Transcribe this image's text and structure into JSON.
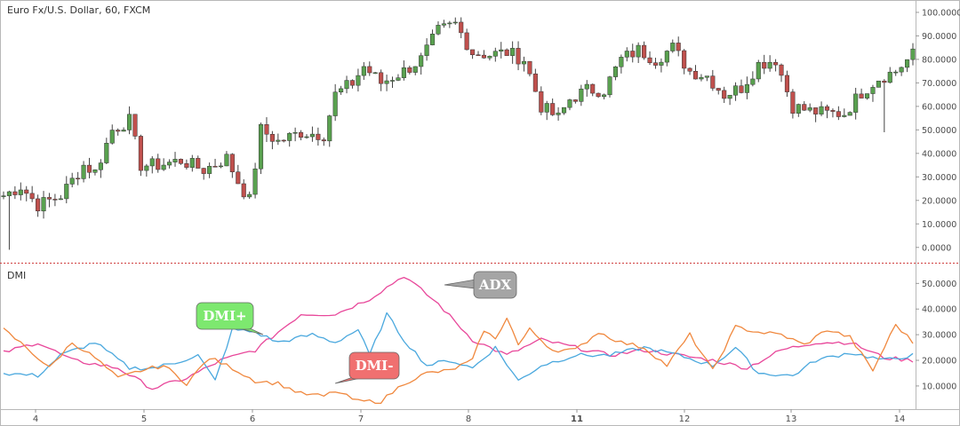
{
  "chart_data": [
    {
      "type": "candlestick",
      "title": "Euro Fx/U.S. Dollar, 60, FXCM",
      "ylim": [
        -5,
        103
      ],
      "yticks": [
        "0.0000",
        "10.0000",
        "20.0000",
        "30.0000",
        "40.0000",
        "50.0000",
        "60.0000",
        "70.0000",
        "80.0000",
        "90.0000",
        "100.0000"
      ],
      "colors": {
        "up": "#59a14f",
        "down": "#c0504d",
        "wick": "#444444"
      },
      "anchors": [
        [
          0,
          22
        ],
        [
          3,
          26
        ],
        [
          6,
          18
        ],
        [
          10,
          22
        ],
        [
          14,
          35
        ],
        [
          16,
          32
        ],
        [
          19,
          50
        ],
        [
          22,
          54
        ],
        [
          24,
          35
        ],
        [
          27,
          35
        ],
        [
          31,
          37
        ],
        [
          35,
          33
        ],
        [
          39,
          38
        ],
        [
          41,
          28
        ],
        [
          43,
          20
        ],
        [
          45,
          50
        ],
        [
          48,
          45
        ],
        [
          52,
          49
        ],
        [
          56,
          48
        ],
        [
          58,
          65
        ],
        [
          61,
          70
        ],
        [
          63,
          77
        ],
        [
          66,
          70
        ],
        [
          70,
          75
        ],
        [
          73,
          80
        ],
        [
          76,
          92
        ],
        [
          79,
          95
        ],
        [
          82,
          83
        ],
        [
          85,
          82
        ],
        [
          88,
          83
        ],
        [
          91,
          80
        ],
        [
          94,
          60
        ],
        [
          97,
          55
        ],
        [
          99,
          63
        ],
        [
          102,
          67
        ],
        [
          105,
          67
        ],
        [
          108,
          80
        ],
        [
          111,
          84
        ],
        [
          114,
          80
        ],
        [
          117,
          85
        ],
        [
          120,
          75
        ],
        [
          123,
          73
        ],
        [
          126,
          65
        ],
        [
          129,
          68
        ],
        [
          132,
          78
        ],
        [
          135,
          80
        ],
        [
          138,
          60
        ],
        [
          141,
          58
        ],
        [
          144,
          57
        ],
        [
          147,
          57
        ],
        [
          150,
          66
        ],
        [
          153,
          72
        ],
        [
          156,
          75
        ],
        [
          159,
          82
        ]
      ]
    },
    {
      "type": "line",
      "title": "DMI",
      "ylim": [
        2,
        56
      ],
      "yticks": [
        "10.0000",
        "20.0000",
        "30.0000",
        "40.0000",
        "50.0000"
      ],
      "x_categories": [
        "4",
        "5",
        "6",
        "7",
        "8",
        "11",
        "12",
        "13",
        "14"
      ],
      "series": [
        {
          "name": "ADX",
          "color": "#e8479a",
          "anchors": [
            [
              0,
              23
            ],
            [
              6,
              27
            ],
            [
              12,
              20
            ],
            [
              20,
              17
            ],
            [
              26,
              9
            ],
            [
              32,
              13
            ],
            [
              38,
              20
            ],
            [
              44,
              24
            ],
            [
              52,
              38
            ],
            [
              58,
              38
            ],
            [
              64,
              44
            ],
            [
              70,
              53
            ],
            [
              76,
              42
            ],
            [
              82,
              28
            ],
            [
              88,
              22
            ],
            [
              94,
              28
            ],
            [
              100,
              25
            ],
            [
              106,
              22
            ],
            [
              112,
              24
            ],
            [
              118,
              22
            ],
            [
              124,
              20
            ],
            [
              130,
              17
            ],
            [
              136,
              24
            ],
            [
              142,
              27
            ],
            [
              148,
              27
            ],
            [
              154,
              21
            ],
            [
              159,
              20
            ]
          ]
        },
        {
          "name": "DMI+",
          "color": "#4aa8de",
          "anchors": [
            [
              0,
              15
            ],
            [
              6,
              14
            ],
            [
              10,
              22
            ],
            [
              16,
              27
            ],
            [
              22,
              17
            ],
            [
              26,
              17
            ],
            [
              30,
              19
            ],
            [
              34,
              22
            ],
            [
              37,
              12
            ],
            [
              40,
              32
            ],
            [
              44,
              31
            ],
            [
              48,
              27
            ],
            [
              54,
              30
            ],
            [
              58,
              27
            ],
            [
              62,
              32
            ],
            [
              64,
              22
            ],
            [
              67,
              38
            ],
            [
              70,
              28
            ],
            [
              74,
              18
            ],
            [
              78,
              20
            ],
            [
              82,
              17
            ],
            [
              86,
              25
            ],
            [
              90,
              12
            ],
            [
              94,
              18
            ],
            [
              100,
              22
            ],
            [
              106,
              22
            ],
            [
              112,
              25
            ],
            [
              118,
              22
            ],
            [
              124,
              18
            ],
            [
              128,
              25
            ],
            [
              132,
              15
            ],
            [
              138,
              14
            ],
            [
              142,
              20
            ],
            [
              148,
              23
            ],
            [
              154,
              20
            ],
            [
              159,
              22
            ]
          ]
        },
        {
          "name": "DMI-",
          "color": "#f0883e",
          "anchors": [
            [
              0,
              32
            ],
            [
              4,
              25
            ],
            [
              8,
              17
            ],
            [
              12,
              27
            ],
            [
              16,
              21
            ],
            [
              20,
              13
            ],
            [
              24,
              16
            ],
            [
              28,
              18
            ],
            [
              32,
              11
            ],
            [
              36,
              21
            ],
            [
              40,
              17
            ],
            [
              44,
              12
            ],
            [
              48,
              11
            ],
            [
              52,
              7
            ],
            [
              56,
              6
            ],
            [
              58,
              8
            ],
            [
              62,
              4
            ],
            [
              66,
              4
            ],
            [
              70,
              11
            ],
            [
              74,
              15
            ],
            [
              78,
              16
            ],
            [
              82,
              20
            ],
            [
              84,
              32
            ],
            [
              86,
              28
            ],
            [
              88,
              37
            ],
            [
              90,
              26
            ],
            [
              92,
              32
            ],
            [
              96,
              24
            ],
            [
              100,
              24
            ],
            [
              104,
              31
            ],
            [
              108,
              27
            ],
            [
              112,
              25
            ],
            [
              116,
              18
            ],
            [
              120,
              30
            ],
            [
              124,
              16
            ],
            [
              128,
              33
            ],
            [
              132,
              31
            ],
            [
              136,
              30
            ],
            [
              140,
              26
            ],
            [
              144,
              32
            ],
            [
              148,
              29
            ],
            [
              152,
              16
            ],
            [
              156,
              34
            ],
            [
              159,
              27
            ]
          ]
        }
      ],
      "callouts": [
        {
          "label": "ADX",
          "series": "ADX",
          "color": "#a5a5a5"
        },
        {
          "label": "DMI+",
          "series": "DMI+",
          "color": "#7de86f"
        },
        {
          "label": "DMI-",
          "series": "DMI-",
          "color": "#f07070"
        }
      ]
    }
  ]
}
